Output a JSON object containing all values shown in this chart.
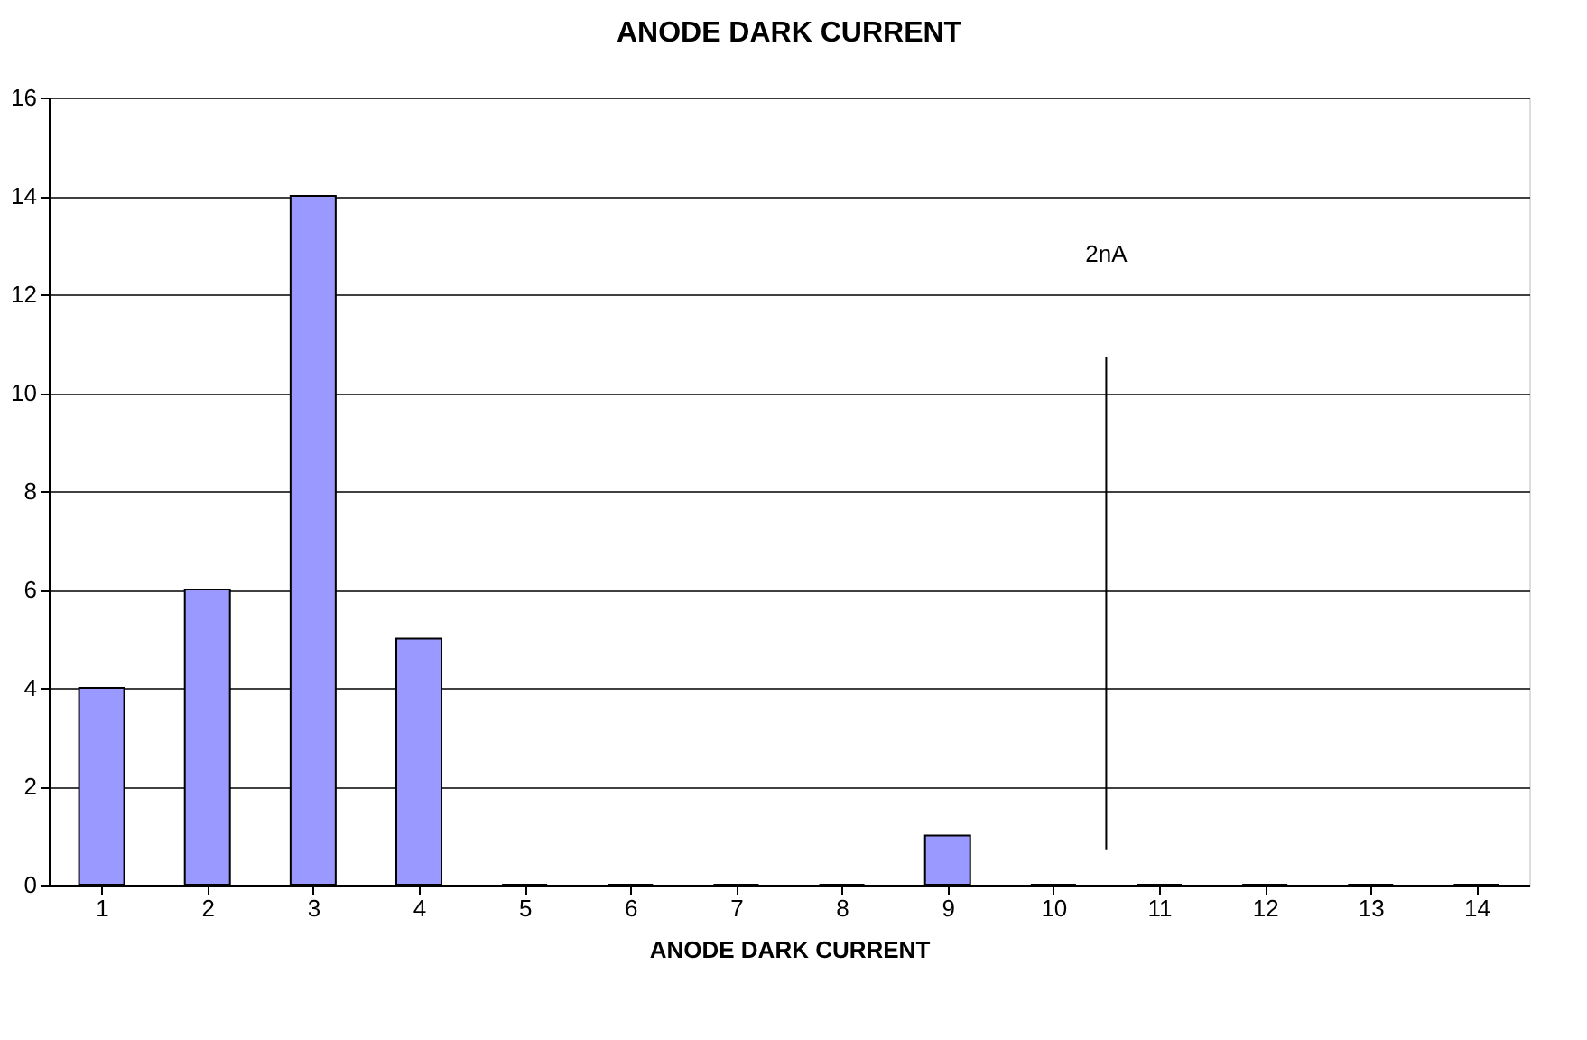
{
  "chart_data": {
    "type": "bar",
    "title": "ANODE DARK CURRENT",
    "xlabel": "ANODE DARK CURRENT",
    "x": [
      1,
      2,
      3,
      4,
      5,
      6,
      7,
      8,
      9,
      10,
      11,
      12,
      13,
      14
    ],
    "xlim": [
      0.5,
      14.5
    ],
    "xticks": [
      1,
      2,
      3,
      4,
      5,
      6,
      7,
      8,
      9,
      10,
      11,
      12,
      13,
      14
    ],
    "values": [
      4,
      6,
      14,
      5,
      0,
      0,
      0,
      0,
      1,
      0,
      0,
      0,
      0,
      0
    ],
    "color": "#9999ff",
    "ylim": [
      0,
      16
    ],
    "yticks": [
      0,
      2,
      4,
      6,
      8,
      10,
      12,
      14,
      16
    ],
    "grid": "y",
    "ref_lines": [
      {
        "axis": "x",
        "value": 10.5,
        "label": "2nA",
        "color": "#000000"
      }
    ]
  }
}
